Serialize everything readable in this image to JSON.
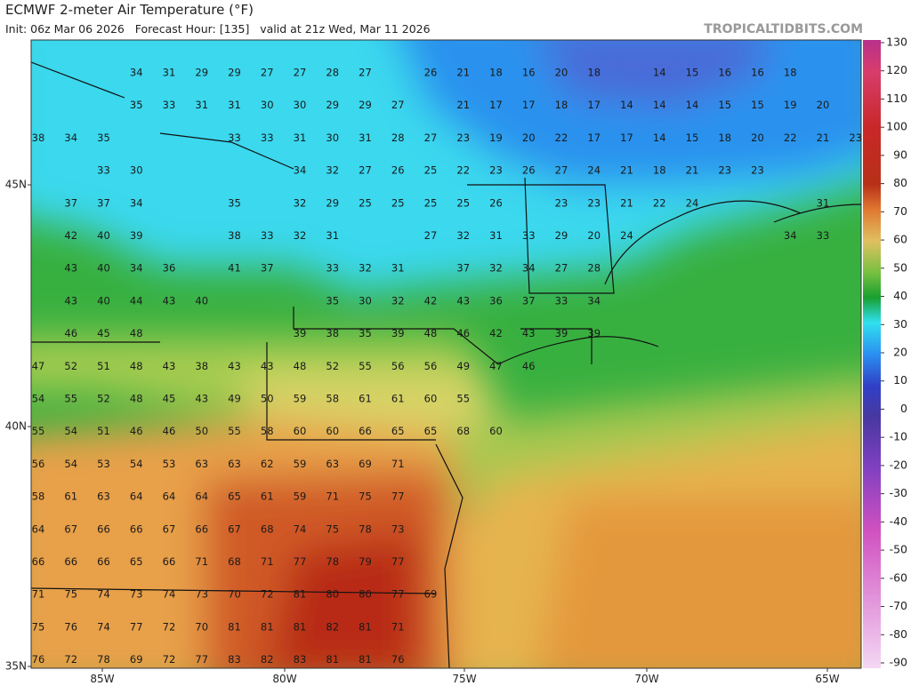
{
  "header": {
    "title": "ECMWF 2-meter Air Temperature (°F)",
    "subtitle": "Init: 06z Mar 06 2026   Forecast Hour: [135]   valid at 21z Wed, Mar 11 2026",
    "source": "TROPICALTIDBITS.COM"
  },
  "axes": {
    "lon_labels": [
      "85W",
      "80W",
      "75W",
      "70W",
      "65W"
    ],
    "lat_labels": [
      "45N",
      "40N",
      "35N"
    ]
  },
  "colorbar": {
    "ticks": [
      130,
      120,
      110,
      100,
      90,
      80,
      70,
      60,
      50,
      40,
      30,
      20,
      10,
      0,
      -10,
      -20,
      -30,
      -40,
      -50,
      -60,
      -70,
      -80,
      -90
    ]
  },
  "temperatures": {
    "rows": [
      [
        null,
        null,
        null,
        34,
        31,
        29,
        29,
        27,
        27,
        28,
        27,
        null,
        26,
        21,
        18,
        16,
        20,
        18,
        null,
        14,
        15,
        16,
        16,
        18,
        null,
        null
      ],
      [
        null,
        null,
        null,
        35,
        33,
        31,
        31,
        30,
        30,
        29,
        29,
        27,
        null,
        21,
        17,
        17,
        18,
        17,
        14,
        14,
        14,
        15,
        15,
        19,
        20,
        null
      ],
      [
        38,
        34,
        35,
        null,
        null,
        null,
        33,
        33,
        31,
        30,
        31,
        28,
        27,
        23,
        19,
        20,
        22,
        17,
        17,
        14,
        15,
        18,
        20,
        22,
        21,
        23
      ],
      [
        null,
        null,
        33,
        30,
        null,
        null,
        null,
        null,
        34,
        32,
        27,
        26,
        25,
        22,
        23,
        26,
        27,
        24,
        21,
        18,
        21,
        23,
        23,
        null,
        null,
        null
      ],
      [
        null,
        37,
        37,
        34,
        null,
        null,
        35,
        null,
        32,
        29,
        25,
        25,
        25,
        25,
        26,
        null,
        23,
        23,
        21,
        22,
        24,
        null,
        null,
        null,
        31,
        null
      ],
      [
        null,
        42,
        40,
        39,
        null,
        null,
        38,
        33,
        32,
        31,
        null,
        null,
        27,
        32,
        31,
        33,
        29,
        20,
        24,
        null,
        null,
        null,
        null,
        34,
        33,
        null
      ],
      [
        null,
        43,
        40,
        34,
        36,
        null,
        41,
        37,
        null,
        33,
        32,
        31,
        null,
        37,
        32,
        34,
        27,
        28,
        null,
        null,
        null,
        null,
        null,
        null,
        null,
        null
      ],
      [
        null,
        43,
        40,
        44,
        43,
        40,
        null,
        null,
        null,
        35,
        30,
        32,
        42,
        43,
        36,
        37,
        33,
        34,
        null,
        null,
        null,
        null,
        null,
        null,
        null,
        null
      ],
      [
        null,
        46,
        45,
        48,
        null,
        null,
        null,
        null,
        39,
        38,
        35,
        39,
        48,
        46,
        42,
        43,
        39,
        39,
        null,
        null,
        null,
        null,
        null,
        null,
        null,
        null
      ],
      [
        47,
        52,
        51,
        48,
        43,
        38,
        43,
        43,
        48,
        52,
        55,
        56,
        56,
        49,
        47,
        46,
        null,
        null,
        null,
        null,
        null,
        null,
        null,
        null,
        null,
        null
      ],
      [
        54,
        55,
        52,
        48,
        45,
        43,
        49,
        50,
        59,
        58,
        61,
        61,
        60,
        55,
        null,
        null,
        null,
        null,
        null,
        null,
        null,
        null,
        null,
        null,
        null,
        null
      ],
      [
        55,
        54,
        51,
        46,
        46,
        50,
        55,
        58,
        60,
        60,
        66,
        65,
        65,
        68,
        60,
        null,
        null,
        null,
        null,
        null,
        null,
        null,
        null,
        null,
        null,
        null
      ],
      [
        56,
        54,
        53,
        54,
        53,
        63,
        63,
        62,
        59,
        63,
        69,
        71,
        null,
        null,
        null,
        null,
        null,
        null,
        null,
        null,
        null,
        null,
        null,
        null,
        null,
        null
      ],
      [
        58,
        61,
        63,
        64,
        64,
        64,
        65,
        61,
        59,
        71,
        75,
        77,
        null,
        null,
        null,
        null,
        null,
        null,
        null,
        null,
        null,
        null,
        null,
        null,
        null,
        null
      ],
      [
        64,
        67,
        66,
        66,
        67,
        66,
        67,
        68,
        74,
        75,
        78,
        73,
        null,
        null,
        null,
        null,
        null,
        null,
        null,
        null,
        null,
        null,
        null,
        null,
        null,
        null
      ],
      [
        66,
        66,
        66,
        65,
        66,
        71,
        68,
        71,
        77,
        78,
        79,
        77,
        null,
        null,
        null,
        null,
        null,
        null,
        null,
        null,
        null,
        null,
        null,
        null,
        null,
        null
      ],
      [
        71,
        75,
        74,
        73,
        74,
        73,
        70,
        72,
        81,
        80,
        80,
        77,
        69,
        null,
        null,
        null,
        null,
        null,
        null,
        null,
        null,
        null,
        null,
        null,
        null,
        null
      ],
      [
        75,
        76,
        74,
        77,
        72,
        70,
        81,
        81,
        81,
        82,
        81,
        71,
        null,
        null,
        null,
        null,
        null,
        null,
        null,
        null,
        null,
        null,
        null,
        null,
        null,
        null
      ],
      [
        76,
        72,
        78,
        69,
        72,
        77,
        83,
        82,
        83,
        81,
        81,
        76,
        null,
        null,
        null,
        null,
        null,
        null,
        null,
        null,
        null,
        null,
        null,
        null,
        null,
        null
      ]
    ]
  }
}
